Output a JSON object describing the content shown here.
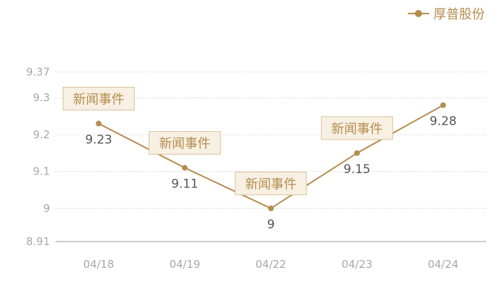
{
  "legend": {
    "label": "厚普股份"
  },
  "colors": {
    "series": "#b58d4e",
    "annotation_fill": "#f8f0e3",
    "annotation_border": "#d9c29a",
    "grid": "#c8c8c8",
    "axis_text": "#a8a8a8",
    "value_text": "#555555"
  },
  "chart_data": {
    "type": "line",
    "categories": [
      "04/18",
      "04/19",
      "04/22",
      "04/23",
      "04/24"
    ],
    "series": [
      {
        "name": "厚普股份",
        "values": [
          9.23,
          9.11,
          9.0,
          9.15,
          9.28
        ]
      }
    ],
    "value_labels": [
      "9.23",
      "9.11",
      "9",
      "9.15",
      "9.28"
    ],
    "annotations": [
      {
        "category": "04/18",
        "text": "新闻事件"
      },
      {
        "category": "04/19",
        "text": "新闻事件"
      },
      {
        "category": "04/22",
        "text": "新闻事件"
      },
      {
        "category": "04/23",
        "text": "新闻事件"
      }
    ],
    "y_ticks": [
      8.91,
      9,
      9.1,
      9.2,
      9.3,
      9.37
    ],
    "y_tick_labels": [
      "8.91",
      "9",
      "9.1",
      "9.2",
      "9.3",
      "9.37"
    ],
    "ylim": [
      8.91,
      9.37
    ],
    "grid": true,
    "legend_position": "top-right"
  }
}
